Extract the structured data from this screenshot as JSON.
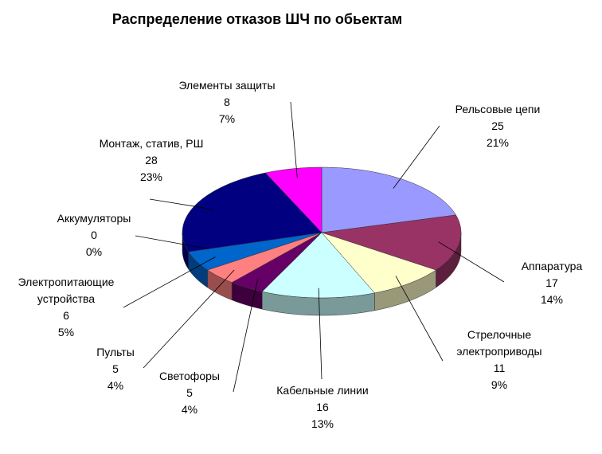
{
  "chart_data": {
    "type": "pie3d",
    "title": "Распределение отказов ШЧ по обьектам",
    "categories": [
      "Рельсовые цепи",
      "Аппаратура",
      "Стрелочные электроприводы",
      "Кабельные линии",
      "Светофоры",
      "Пульты",
      "Электропитающие устройства",
      "Аккумуляторы",
      "Монтаж, статив, РШ",
      "Элементы защиты"
    ],
    "values": [
      25,
      17,
      11,
      16,
      5,
      5,
      6,
      0,
      28,
      8
    ],
    "percent_labels": [
      "21%",
      "14%",
      "9%",
      "13%",
      "4%",
      "4%",
      "5%",
      "0%",
      "23%",
      "7%"
    ],
    "colors": [
      "#9999ff",
      "#993366",
      "#ffffcc",
      "#ccffff",
      "#660066",
      "#ff8080",
      "#0066cc",
      "#ccccff",
      "#000080",
      "#ff00ff"
    ]
  }
}
